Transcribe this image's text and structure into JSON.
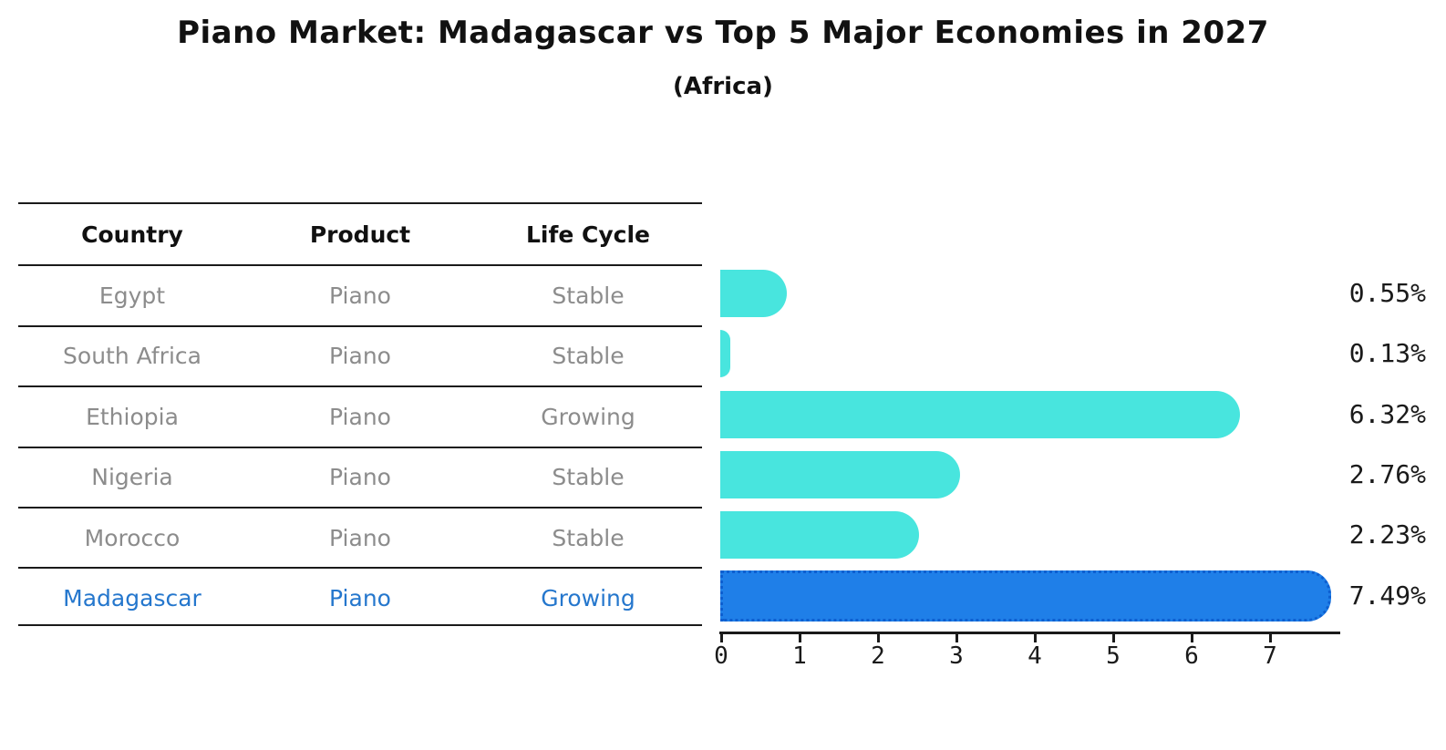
{
  "header": {
    "title": "Piano Market: Madagascar vs Top 5 Major Economies in 2027",
    "subtitle": "(Africa)"
  },
  "table": {
    "columns": [
      "Country",
      "Product",
      "Life Cycle"
    ],
    "rows": [
      {
        "country": "Egypt",
        "product": "Piano",
        "life_cycle": "Stable",
        "highlight": false
      },
      {
        "country": "South Africa",
        "product": "Piano",
        "life_cycle": "Stable",
        "highlight": false
      },
      {
        "country": "Ethiopia",
        "product": "Piano",
        "life_cycle": "Growing",
        "highlight": false
      },
      {
        "country": "Nigeria",
        "product": "Piano",
        "life_cycle": "Stable",
        "highlight": false
      },
      {
        "country": "Morocco",
        "product": "Piano",
        "life_cycle": "Stable",
        "highlight": false
      },
      {
        "country": "Madagascar",
        "product": "Piano",
        "life_cycle": "Growing",
        "highlight": true
      }
    ]
  },
  "chart_data": {
    "type": "bar",
    "orientation": "horizontal",
    "title": "Piano Market: Madagascar vs Top 5 Major Economies in 2027",
    "subtitle": "(Africa)",
    "categories": [
      "Egypt",
      "South Africa",
      "Ethiopia",
      "Nigeria",
      "Morocco",
      "Madagascar"
    ],
    "values": [
      0.55,
      0.13,
      6.32,
      2.76,
      2.23,
      7.49
    ],
    "value_labels": [
      "0.55%",
      "0.13%",
      "6.32%",
      "2.76%",
      "2.23%",
      "7.49%"
    ],
    "x_ticks": [
      "0",
      "1",
      "2",
      "3",
      "4",
      "5",
      "6",
      "7"
    ],
    "xlim": [
      0,
      7.88
    ],
    "grid": false,
    "legend": "none",
    "highlight_index": 5,
    "bar_color": "#48E5DE",
    "highlight_bar_color": "#1F7FE8",
    "highlight_edge_color": "#0d5fd0",
    "text_gray": "#8c8c8c",
    "highlight_text_color": "#2577cd"
  }
}
